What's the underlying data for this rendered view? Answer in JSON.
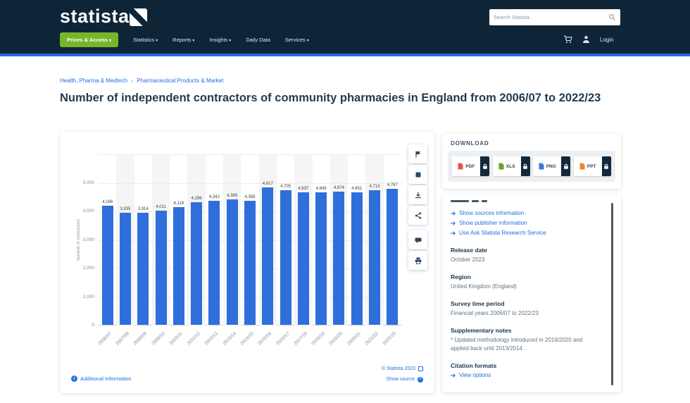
{
  "header": {
    "logo_text": "statista",
    "nav": [
      {
        "label": "Prices & Access",
        "caret": true,
        "highlight": true
      },
      {
        "label": "Statistics",
        "caret": true,
        "highlight": false
      },
      {
        "label": "Reports",
        "caret": true,
        "highlight": false
      },
      {
        "label": "Insights",
        "caret": true,
        "highlight": false
      },
      {
        "label": "Daily Data",
        "caret": false,
        "highlight": false
      },
      {
        "label": "Services",
        "caret": true,
        "highlight": false
      }
    ],
    "search_placeholder": "Search Statista",
    "login_label": "Login"
  },
  "breadcrumb": {
    "items": [
      "Health, Pharma & Medtech",
      "Pharmaceutical Products & Market"
    ],
    "separator": "›"
  },
  "page_title": "Number of independent contractors of community pharmacies in England from 2006/07 to 2022/23",
  "chart_data": {
    "type": "bar",
    "title": "Number of independent contractors of community pharmacies in England from 2006/07 to 2022/23",
    "categories": [
      "2006/07",
      "2007/08",
      "2008/09",
      "2009/10",
      "2010/11",
      "2011/12",
      "2012/13",
      "2013/14",
      "2014/15",
      "2015/16",
      "2016/17",
      "2017/18",
      "2018/19",
      "2019/20",
      "2020/21",
      "2021/22",
      "2022/23"
    ],
    "values": [
      4166,
      3935,
      3914,
      4011,
      4118,
      4296,
      4342,
      4389,
      4358,
      4817,
      4705,
      4637,
      4645,
      4674,
      4651,
      4713,
      4767
    ],
    "labels": [
      "4,166",
      "3,935",
      "3,914",
      "4,011",
      "4,118",
      "4,296",
      "4,342",
      "4,389",
      "4,358",
      "4,817",
      "4,705",
      "4,637",
      "4,645",
      "4,674",
      "4,651",
      "4,713",
      "4,767"
    ],
    "xlabel": "",
    "ylabel": "Number of contractors",
    "ylim": [
      0,
      6000
    ],
    "ytick_interval": 1000,
    "ytick_label_max": 5000,
    "grid": true,
    "legend_position": "none",
    "bar_color": "#2e6fdb"
  },
  "chart_footer": {
    "additional_info": "Additional Information",
    "copyright": "© Statista 2023",
    "show_source": "Show source"
  },
  "toolbar_icons": [
    "flag-icon",
    "image-icon",
    "download-icon",
    "share-icon",
    "chat-icon",
    "print-icon"
  ],
  "download": {
    "heading": "DOWNLOAD",
    "buttons": [
      {
        "label": "PDF",
        "color": "#e2574c"
      },
      {
        "label": "XLS",
        "color": "#62a420"
      },
      {
        "label": "PNG",
        "color": "#3a7bd5"
      },
      {
        "label": "PPT",
        "color": "#e8883a"
      }
    ]
  },
  "details": {
    "links": [
      "Show sources information",
      "Show publisher information",
      "Use Ask Statista Research Service"
    ],
    "link_arrow": "→",
    "sections": [
      {
        "label": "Release date",
        "value": "October 2023"
      },
      {
        "label": "Region",
        "value": "United Kingdom (England)"
      },
      {
        "label": "Survey time period",
        "value": "Financial years 2006/07 to 2022/23"
      },
      {
        "label": "Supplementary notes",
        "value": "* Updated methodology introduced in 2019/2020 and applied back until 2013/2014."
      }
    ],
    "citation_label": "Citation formats",
    "citation_link": "View options"
  },
  "colors": {
    "header_navy": "#0e2538",
    "accent_blue_bar": "#2468df",
    "link_blue": "#1f6fe0",
    "nav_green": "#76b72a",
    "bar_blue": "#2e6fdb"
  }
}
